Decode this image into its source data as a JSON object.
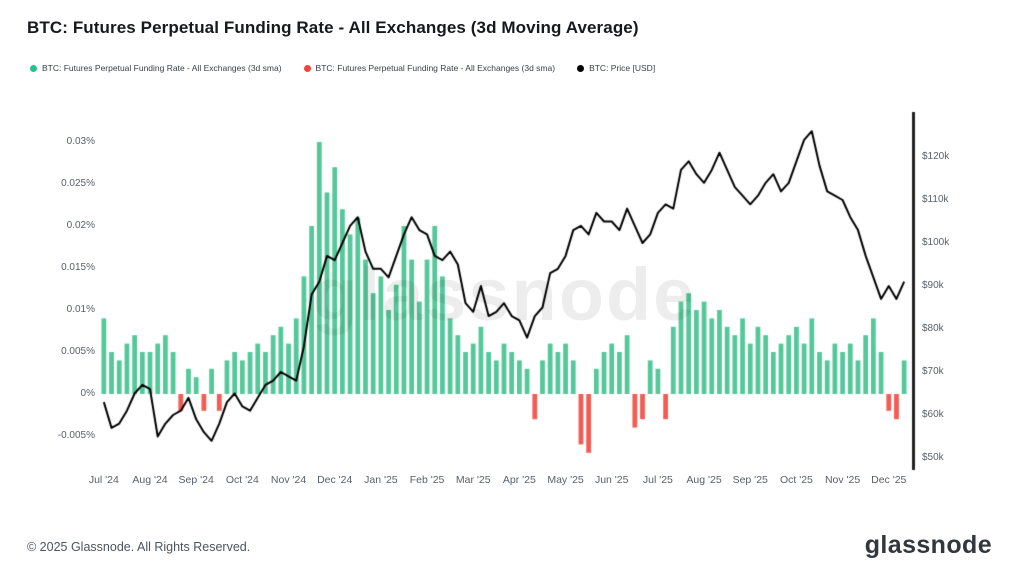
{
  "header": {
    "title": "BTC: Futures Perpetual Funding Rate - All Exchanges (3d Moving Average)"
  },
  "legend": {
    "items": [
      {
        "name": "funding-rate-positive",
        "label": "BTC: Futures Perpetual Funding Rate - All Exchanges (3d sma)",
        "color": "#27c08b"
      },
      {
        "name": "funding-rate-negative",
        "label": "BTC: Futures Perpetual Funding Rate - All Exchanges (3d sma)",
        "color": "#f04438"
      },
      {
        "name": "price",
        "label": "BTC: Price [USD]",
        "color": "#000000"
      }
    ]
  },
  "watermark": "glassnode",
  "footer": {
    "copyright": "© 2025 Glassnode. All Rights Reserved.",
    "logo": "glassnode"
  },
  "chart_data": {
    "type": "bar",
    "subtype": "bar+line dual-axis",
    "title": "BTC: Futures Perpetual Funding Rate - All Exchanges (3d Moving Average)",
    "x_tick_labels": [
      "Jul '24",
      "Aug '24",
      "Sep '24",
      "Oct '24",
      "Nov '24",
      "Dec '24",
      "Jan '25",
      "Feb '25",
      "Mar '25",
      "Apr '25",
      "May '25",
      "Jun '25",
      "Jul '25",
      "Aug '25",
      "Sep '25",
      "Oct '25",
      "Nov '25",
      "Dec '25"
    ],
    "points_per_month": 6,
    "left_axis": {
      "unit": "%",
      "range": [
        -0.0075,
        0.032
      ],
      "ticks": [
        {
          "label": "0.03%",
          "value": 0.03
        },
        {
          "label": "0.025%",
          "value": 0.025
        },
        {
          "label": "0.02%",
          "value": 0.02
        },
        {
          "label": "0.015%",
          "value": 0.015
        },
        {
          "label": "0.01%",
          "value": 0.01
        },
        {
          "label": "0.005%",
          "value": 0.005
        },
        {
          "label": "0%",
          "value": 0
        },
        {
          "label": "-0.005%",
          "value": -0.005
        }
      ]
    },
    "right_axis": {
      "unit": "USD (thousands)",
      "range": [
        50,
        128
      ],
      "ticks": [
        {
          "label": "$120k",
          "value": 120
        },
        {
          "label": "$110k",
          "value": 110
        },
        {
          "label": "$100k",
          "value": 100
        },
        {
          "label": "$90k",
          "value": 90
        },
        {
          "label": "$80k",
          "value": 80
        },
        {
          "label": "$70k",
          "value": 70
        },
        {
          "label": "$60k",
          "value": 60
        },
        {
          "label": "$50k",
          "value": 50
        }
      ]
    },
    "series": [
      {
        "name": "BTC: Futures Perpetual Funding Rate - All Exchanges (3d sma)",
        "type": "bar",
        "axis": "left",
        "unit": "%",
        "color_positive": "#54c89a",
        "color_negative": "#f25c54",
        "values": [
          0.009,
          0.005,
          0.004,
          0.006,
          0.007,
          0.005,
          0.005,
          0.006,
          0.007,
          0.005,
          -0.002,
          0.003,
          0.002,
          -0.002,
          0.003,
          -0.002,
          0.004,
          0.005,
          0.004,
          0.005,
          0.006,
          0.005,
          0.007,
          0.008,
          0.006,
          0.009,
          0.014,
          0.02,
          0.03,
          0.024,
          0.027,
          0.022,
          0.019,
          0.021,
          0.016,
          0.012,
          0.014,
          0.01,
          0.013,
          0.02,
          0.016,
          0.011,
          0.016,
          0.02,
          0.014,
          0.009,
          0.007,
          0.005,
          0.006,
          0.008,
          0.005,
          0.004,
          0.006,
          0.005,
          0.004,
          0.003,
          -0.003,
          0.004,
          0.006,
          0.005,
          0.006,
          0.004,
          -0.006,
          -0.007,
          0.003,
          0.005,
          0.006,
          0.005,
          0.007,
          -0.004,
          -0.003,
          0.004,
          0.003,
          -0.003,
          0.008,
          0.011,
          0.012,
          0.01,
          0.011,
          0.009,
          0.01,
          0.008,
          0.007,
          0.009,
          0.006,
          0.008,
          0.007,
          0.005,
          0.006,
          0.007,
          0.008,
          0.006,
          0.009,
          0.005,
          0.004,
          0.006,
          0.005,
          0.006,
          0.004,
          0.007,
          0.009,
          0.005,
          -0.002,
          -0.003,
          0.004
        ]
      },
      {
        "name": "BTC: Price [USD]",
        "type": "line",
        "axis": "right",
        "unit": "USD (thousands)",
        "color": "#000000",
        "values": [
          63,
          57,
          58,
          61,
          65,
          67,
          66,
          55,
          58,
          60,
          61,
          64,
          59,
          56,
          54,
          58,
          63,
          65,
          62,
          61,
          64,
          67,
          68,
          70,
          69,
          68,
          76,
          88,
          91,
          97,
          96,
          100,
          104,
          106,
          98,
          94,
          94,
          92,
          97,
          102,
          106,
          103,
          102,
          97,
          96,
          98,
          95,
          86,
          84,
          90,
          83,
          84,
          86,
          83,
          82,
          78,
          83,
          85,
          93,
          94,
          97,
          103,
          104,
          102,
          107,
          105,
          105,
          103,
          108,
          104,
          100,
          102,
          107,
          109,
          108,
          117,
          119,
          116,
          114,
          117,
          121,
          117,
          113,
          111,
          109,
          111,
          114,
          116,
          112,
          114,
          119,
          124,
          126,
          118,
          112,
          111,
          110,
          106,
          103,
          97,
          92,
          87,
          90,
          87,
          91
        ]
      }
    ]
  }
}
